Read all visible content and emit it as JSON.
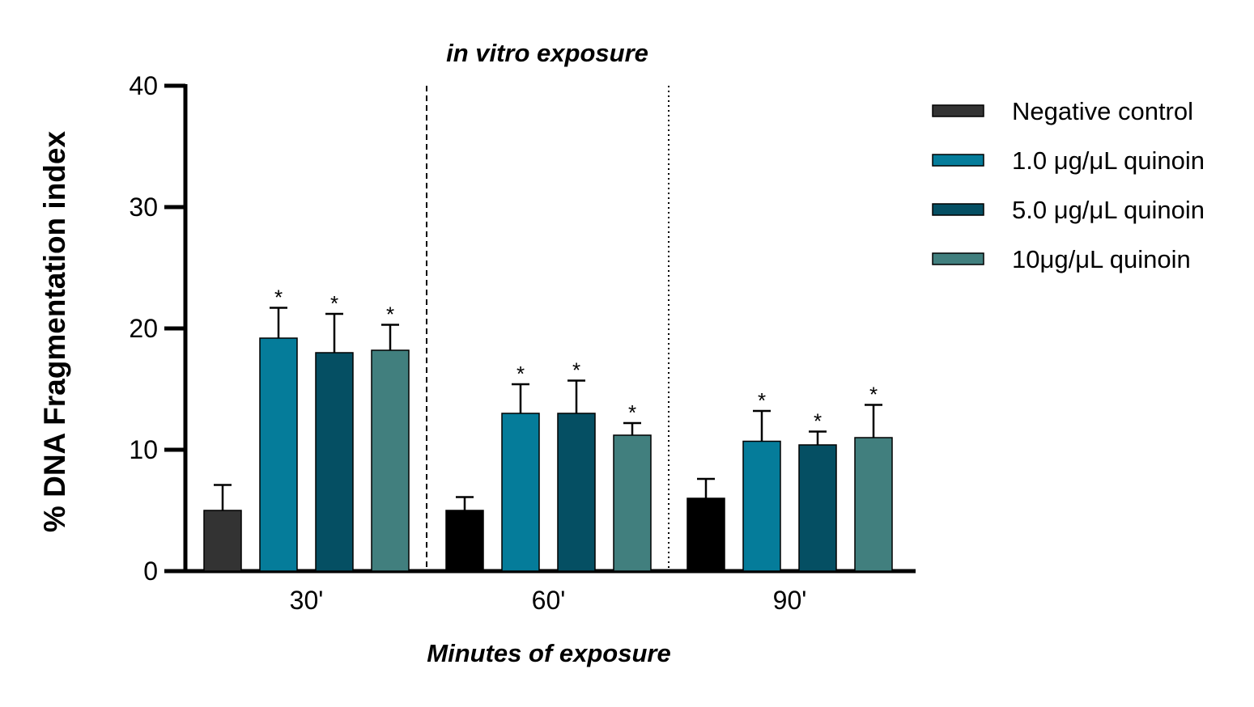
{
  "chart_data": {
    "type": "bar",
    "title": "in vitro exposure",
    "xlabel": "Minutes of exposure",
    "ylabel": "% DNA Fragmentation index",
    "ylim": [
      0,
      40
    ],
    "yticks": [
      0,
      10,
      20,
      30,
      40
    ],
    "grid": false,
    "legend_position": "right",
    "categories": [
      "30'",
      "60'",
      "90'"
    ],
    "series": [
      {
        "name": "Negative control",
        "color": "#333333",
        "values": [
          5.0,
          5.0,
          6.0
        ],
        "errors": [
          2.1,
          1.1,
          1.6
        ],
        "significant": [
          false,
          false,
          false
        ],
        "category_colors": [
          "#333333",
          "#000000",
          "#000000"
        ]
      },
      {
        "name": "1.0 μg/μL quinoin",
        "color": "#057c9a",
        "values": [
          19.2,
          13.0,
          10.7
        ],
        "errors": [
          2.5,
          2.4,
          2.5
        ],
        "significant": [
          true,
          true,
          true
        ]
      },
      {
        "name": "5.0 μg/μL quinoin",
        "color": "#054f63",
        "values": [
          18.0,
          13.0,
          10.4
        ],
        "errors": [
          3.2,
          2.7,
          1.1
        ],
        "significant": [
          true,
          true,
          true
        ]
      },
      {
        "name": "10μg/μL quinoin",
        "color": "#417f7e",
        "values": [
          18.2,
          11.2,
          11.0
        ],
        "errors": [
          2.1,
          1.0,
          2.7
        ],
        "significant": [
          true,
          true,
          true
        ]
      }
    ],
    "significance_marker": "*",
    "group_separators": [
      "dashed",
      "dotted"
    ]
  }
}
